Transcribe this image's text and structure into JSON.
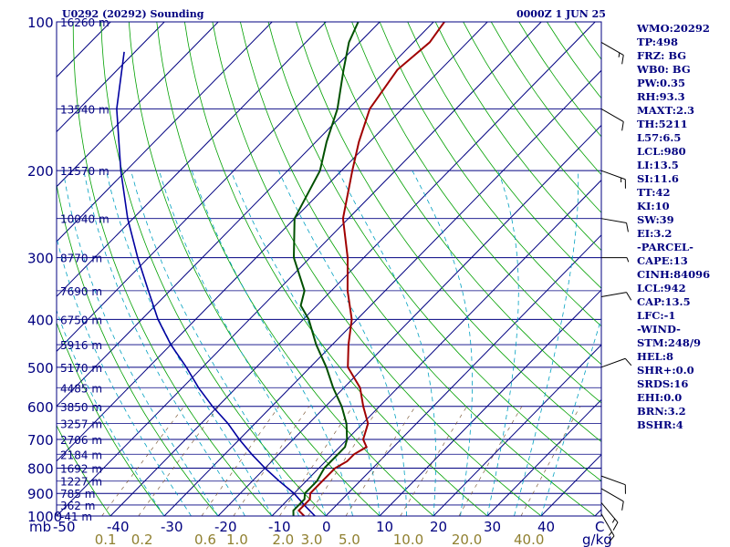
{
  "header": {
    "station": "U0292 (20292) Sounding",
    "datetime": "0000Z  1 JUN 25"
  },
  "indices": [
    "WMO:20292",
    "TP:498",
    "FRZ: BG",
    "WB0: BG",
    "PW:0.35",
    "RH:93.3",
    "MAXT:2.3",
    "TH:5211",
    "L57:6.5",
    "LCL:980",
    "LI:13.5",
    "SI:11.6",
    "TT:42",
    "KI:10",
    "SW:39",
    "EI:3.2",
    "-PARCEL-",
    "CAPE:13",
    "CINH:84096",
    "LCL:942",
    "CAP:13.5",
    "LFC:-1",
    "-WIND-",
    "STM:248/9",
    "HEL:8",
    "SHR+:0.0",
    "SRDS:16",
    "EHI:0.0",
    "BRN:3.2",
    "BSHR:4"
  ],
  "chart_data": {
    "type": "skew-t",
    "pressure_levels": [
      100,
      200,
      300,
      400,
      500,
      600,
      700,
      800,
      900,
      1000
    ],
    "pressure_labels": [
      "100",
      "200",
      "300",
      "400",
      "500",
      "600",
      "700",
      "800",
      "900",
      "1000"
    ],
    "pressure_unit": "mb",
    "temperature_ticks": [
      -50,
      -40,
      -30,
      -20,
      -10,
      0,
      10,
      20,
      30,
      40
    ],
    "temperature_tick_labels": [
      "-50",
      "-40",
      "-30",
      "-20",
      "-10",
      "0",
      "10",
      "20",
      "30",
      "40"
    ],
    "mixing_ratio_labels": [
      "0.1",
      "0.2",
      "0.6",
      "1.0",
      "2.0",
      "3.0",
      "5.0",
      "10.0",
      "20.0",
      "40.0"
    ],
    "mixing_ratio_unit": "g/kg",
    "wind_axis_label": "C",
    "height_labels": [
      {
        "p": 100,
        "text": "16260 m"
      },
      {
        "p": 150,
        "text": "13540 m"
      },
      {
        "p": 200,
        "text": "11570 m"
      },
      {
        "p": 250,
        "text": "10040 m"
      },
      {
        "p": 300,
        "text": "8770 m"
      },
      {
        "p": 350,
        "text": "7690 m"
      },
      {
        "p": 400,
        "text": "6750 m"
      },
      {
        "p": 450,
        "text": "5916 m"
      },
      {
        "p": 500,
        "text": "5170 m"
      },
      {
        "p": 550,
        "text": "4485 m"
      },
      {
        "p": 600,
        "text": "3850 m"
      },
      {
        "p": 650,
        "text": "3257 m"
      },
      {
        "p": 700,
        "text": "2706 m"
      },
      {
        "p": 750,
        "text": "2184 m"
      },
      {
        "p": 800,
        "text": "1692 m"
      },
      {
        "p": 850,
        "text": "1227 m"
      },
      {
        "p": 900,
        "text": "785 m"
      },
      {
        "p": 950,
        "text": "362 m"
      },
      {
        "p": 1000,
        "text": "-41 m"
      }
    ],
    "temperature_profile": [
      [
        1000,
        -4
      ],
      [
        975,
        -6
      ],
      [
        950,
        -6
      ],
      [
        925,
        -6
      ],
      [
        900,
        -7
      ],
      [
        850,
        -7
      ],
      [
        800,
        -7
      ],
      [
        775,
        -6
      ],
      [
        750,
        -6
      ],
      [
        725,
        -5
      ],
      [
        700,
        -7
      ],
      [
        650,
        -9
      ],
      [
        600,
        -13
      ],
      [
        550,
        -17
      ],
      [
        500,
        -23
      ],
      [
        450,
        -27
      ],
      [
        400,
        -31
      ],
      [
        350,
        -37
      ],
      [
        300,
        -43
      ],
      [
        250,
        -51
      ],
      [
        200,
        -58
      ],
      [
        175,
        -62
      ],
      [
        150,
        -66
      ],
      [
        125,
        -68
      ],
      [
        110,
        -67
      ],
      [
        100,
        -68
      ]
    ],
    "dewpoint_profile": [
      [
        1000,
        -6
      ],
      [
        975,
        -7
      ],
      [
        950,
        -7
      ],
      [
        925,
        -7
      ],
      [
        900,
        -8
      ],
      [
        850,
        -8
      ],
      [
        800,
        -9
      ],
      [
        775,
        -9
      ],
      [
        750,
        -9
      ],
      [
        725,
        -9
      ],
      [
        700,
        -10
      ],
      [
        650,
        -13
      ],
      [
        600,
        -17
      ],
      [
        550,
        -22
      ],
      [
        500,
        -27
      ],
      [
        450,
        -33
      ],
      [
        400,
        -39
      ],
      [
        375,
        -43
      ],
      [
        350,
        -45
      ],
      [
        300,
        -53
      ],
      [
        250,
        -60
      ],
      [
        200,
        -64
      ],
      [
        175,
        -68
      ],
      [
        150,
        -72
      ],
      [
        125,
        -78
      ],
      [
        110,
        -82
      ],
      [
        100,
        -84
      ]
    ],
    "parcel_profile": [
      [
        1000,
        -2
      ],
      [
        950,
        -6
      ],
      [
        900,
        -10
      ],
      [
        850,
        -15
      ],
      [
        800,
        -20
      ],
      [
        750,
        -25
      ],
      [
        700,
        -30
      ],
      [
        650,
        -35
      ],
      [
        600,
        -41
      ],
      [
        550,
        -47
      ],
      [
        500,
        -53
      ],
      [
        450,
        -60
      ],
      [
        400,
        -67
      ],
      [
        350,
        -74
      ],
      [
        300,
        -82
      ],
      [
        250,
        -91
      ],
      [
        200,
        -101
      ],
      [
        150,
        -113
      ],
      [
        115,
        -122
      ]
    ],
    "wind_barbs": [
      {
        "p": 110,
        "dir": 300,
        "speed": 15
      },
      {
        "p": 150,
        "dir": 300,
        "speed": 10
      },
      {
        "p": 200,
        "dir": 290,
        "speed": 15
      },
      {
        "p": 250,
        "dir": 280,
        "speed": 10
      },
      {
        "p": 300,
        "dir": 270,
        "speed": 5
      },
      {
        "p": 360,
        "dir": 260,
        "speed": 10
      },
      {
        "p": 500,
        "dir": 250,
        "speed": 10
      },
      {
        "p": 830,
        "dir": 290,
        "speed": 10
      },
      {
        "p": 880,
        "dir": 300,
        "speed": 10
      },
      {
        "p": 940,
        "dir": 320,
        "speed": 15
      },
      {
        "p": 990,
        "dir": 330,
        "speed": 15
      }
    ],
    "colors": {
      "isobar": "#000080",
      "isotherm": "#000080",
      "dry_adiabat": "#00a000",
      "moist_adiabat": "#00a0c0",
      "mixing_ratio": "#806040",
      "temperature": "#a00000",
      "dewpoint": "#005000",
      "parcel": "#0000a0",
      "tick_label": "#000080",
      "mix_label": "#908030"
    }
  }
}
